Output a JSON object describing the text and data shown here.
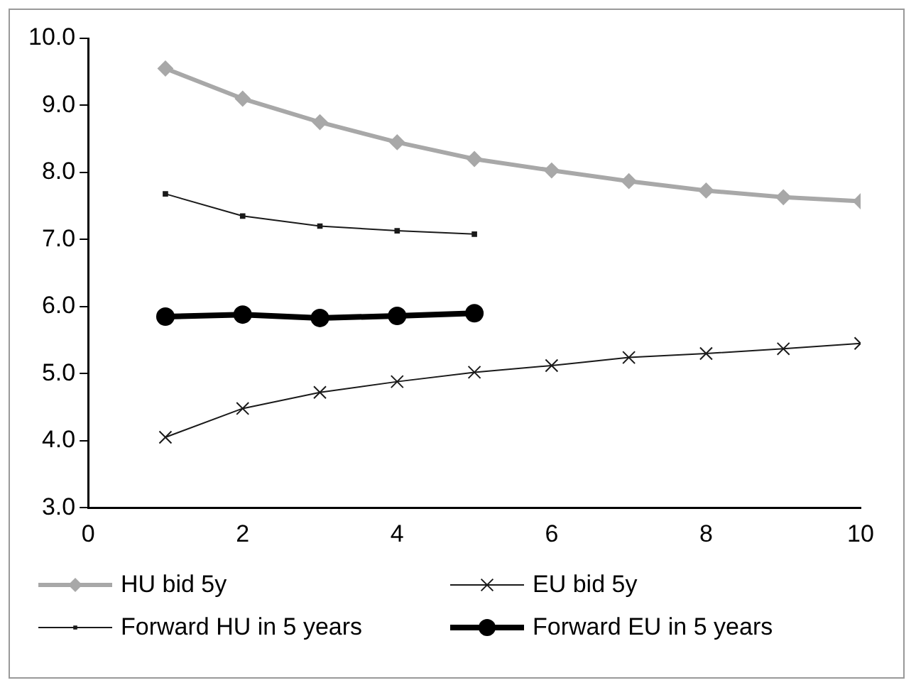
{
  "chart_data": {
    "type": "line",
    "x": [
      1,
      2,
      3,
      4,
      5,
      6,
      7,
      8,
      9,
      10
    ],
    "xlim": [
      0,
      10
    ],
    "xticks": [
      0,
      2,
      4,
      6,
      8,
      10
    ],
    "ylim": [
      3,
      10
    ],
    "yticks": [
      {
        "value": 3,
        "label": "3.0"
      },
      {
        "value": 4,
        "label": "4.0"
      },
      {
        "value": 5,
        "label": "5.0"
      },
      {
        "value": 6,
        "label": "6.0"
      },
      {
        "value": 7,
        "label": "7.0"
      },
      {
        "value": 8,
        "label": "8.0"
      },
      {
        "value": 9,
        "label": "9.0"
      },
      {
        "value": 10,
        "label": "10.0"
      }
    ],
    "grid": false,
    "legend": "bottom",
    "series": [
      {
        "name": "HU bid 5y",
        "color": "#a8a8a8",
        "marker": "diamond",
        "values": [
          9.55,
          9.1,
          8.75,
          8.45,
          8.2,
          8.03,
          7.87,
          7.73,
          7.63,
          7.57
        ]
      },
      {
        "name": "EU bid 5y",
        "color": "#1a1a1a",
        "marker": "cross",
        "values": [
          4.05,
          4.48,
          4.72,
          4.88,
          5.02,
          5.12,
          5.24,
          5.3,
          5.37,
          5.45
        ]
      },
      {
        "name": "Forward HU in 5 years",
        "color": "#1a1a1a",
        "marker": "square",
        "values": [
          7.68,
          7.35,
          7.2,
          7.13,
          7.08,
          null,
          null,
          null,
          null,
          null
        ]
      },
      {
        "name": "Forward EU in 5 years",
        "color": "#000000",
        "marker": "circle",
        "values": [
          5.85,
          5.88,
          5.83,
          5.86,
          5.9,
          null,
          null,
          null,
          null,
          null
        ]
      }
    ]
  }
}
